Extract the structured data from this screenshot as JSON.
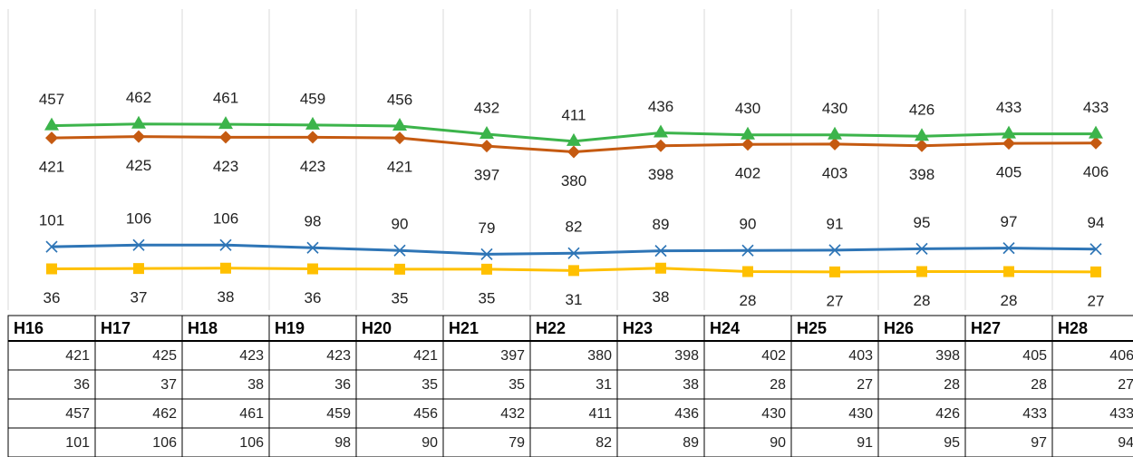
{
  "chart_data": {
    "type": "line",
    "categories": [
      "H16",
      "H17",
      "H18",
      "H19",
      "H20",
      "H21",
      "H22",
      "H23",
      "H24",
      "H25",
      "H26",
      "H27",
      "H28"
    ],
    "ylim": [
      0,
      800
    ],
    "series": [
      {
        "color": "#c55a11",
        "marker": "diamond",
        "label_position": "below",
        "values": [
          421,
          425,
          423,
          423,
          421,
          397,
          380,
          398,
          402,
          403,
          398,
          405,
          406
        ]
      },
      {
        "color": "#ffc000",
        "marker": "square",
        "label_position": "below",
        "values": [
          36,
          37,
          38,
          36,
          35,
          35,
          31,
          38,
          28,
          27,
          28,
          28,
          27
        ]
      },
      {
        "color": "#3cb44b",
        "marker": "triangle",
        "label_position": "above",
        "values": [
          457,
          462,
          461,
          459,
          456,
          432,
          411,
          436,
          430,
          430,
          426,
          433,
          433
        ]
      },
      {
        "color": "#2e75b6",
        "marker": "x",
        "label_position": "above",
        "values": [
          101,
          106,
          106,
          98,
          90,
          79,
          82,
          89,
          90,
          91,
          95,
          97,
          94
        ]
      }
    ]
  }
}
